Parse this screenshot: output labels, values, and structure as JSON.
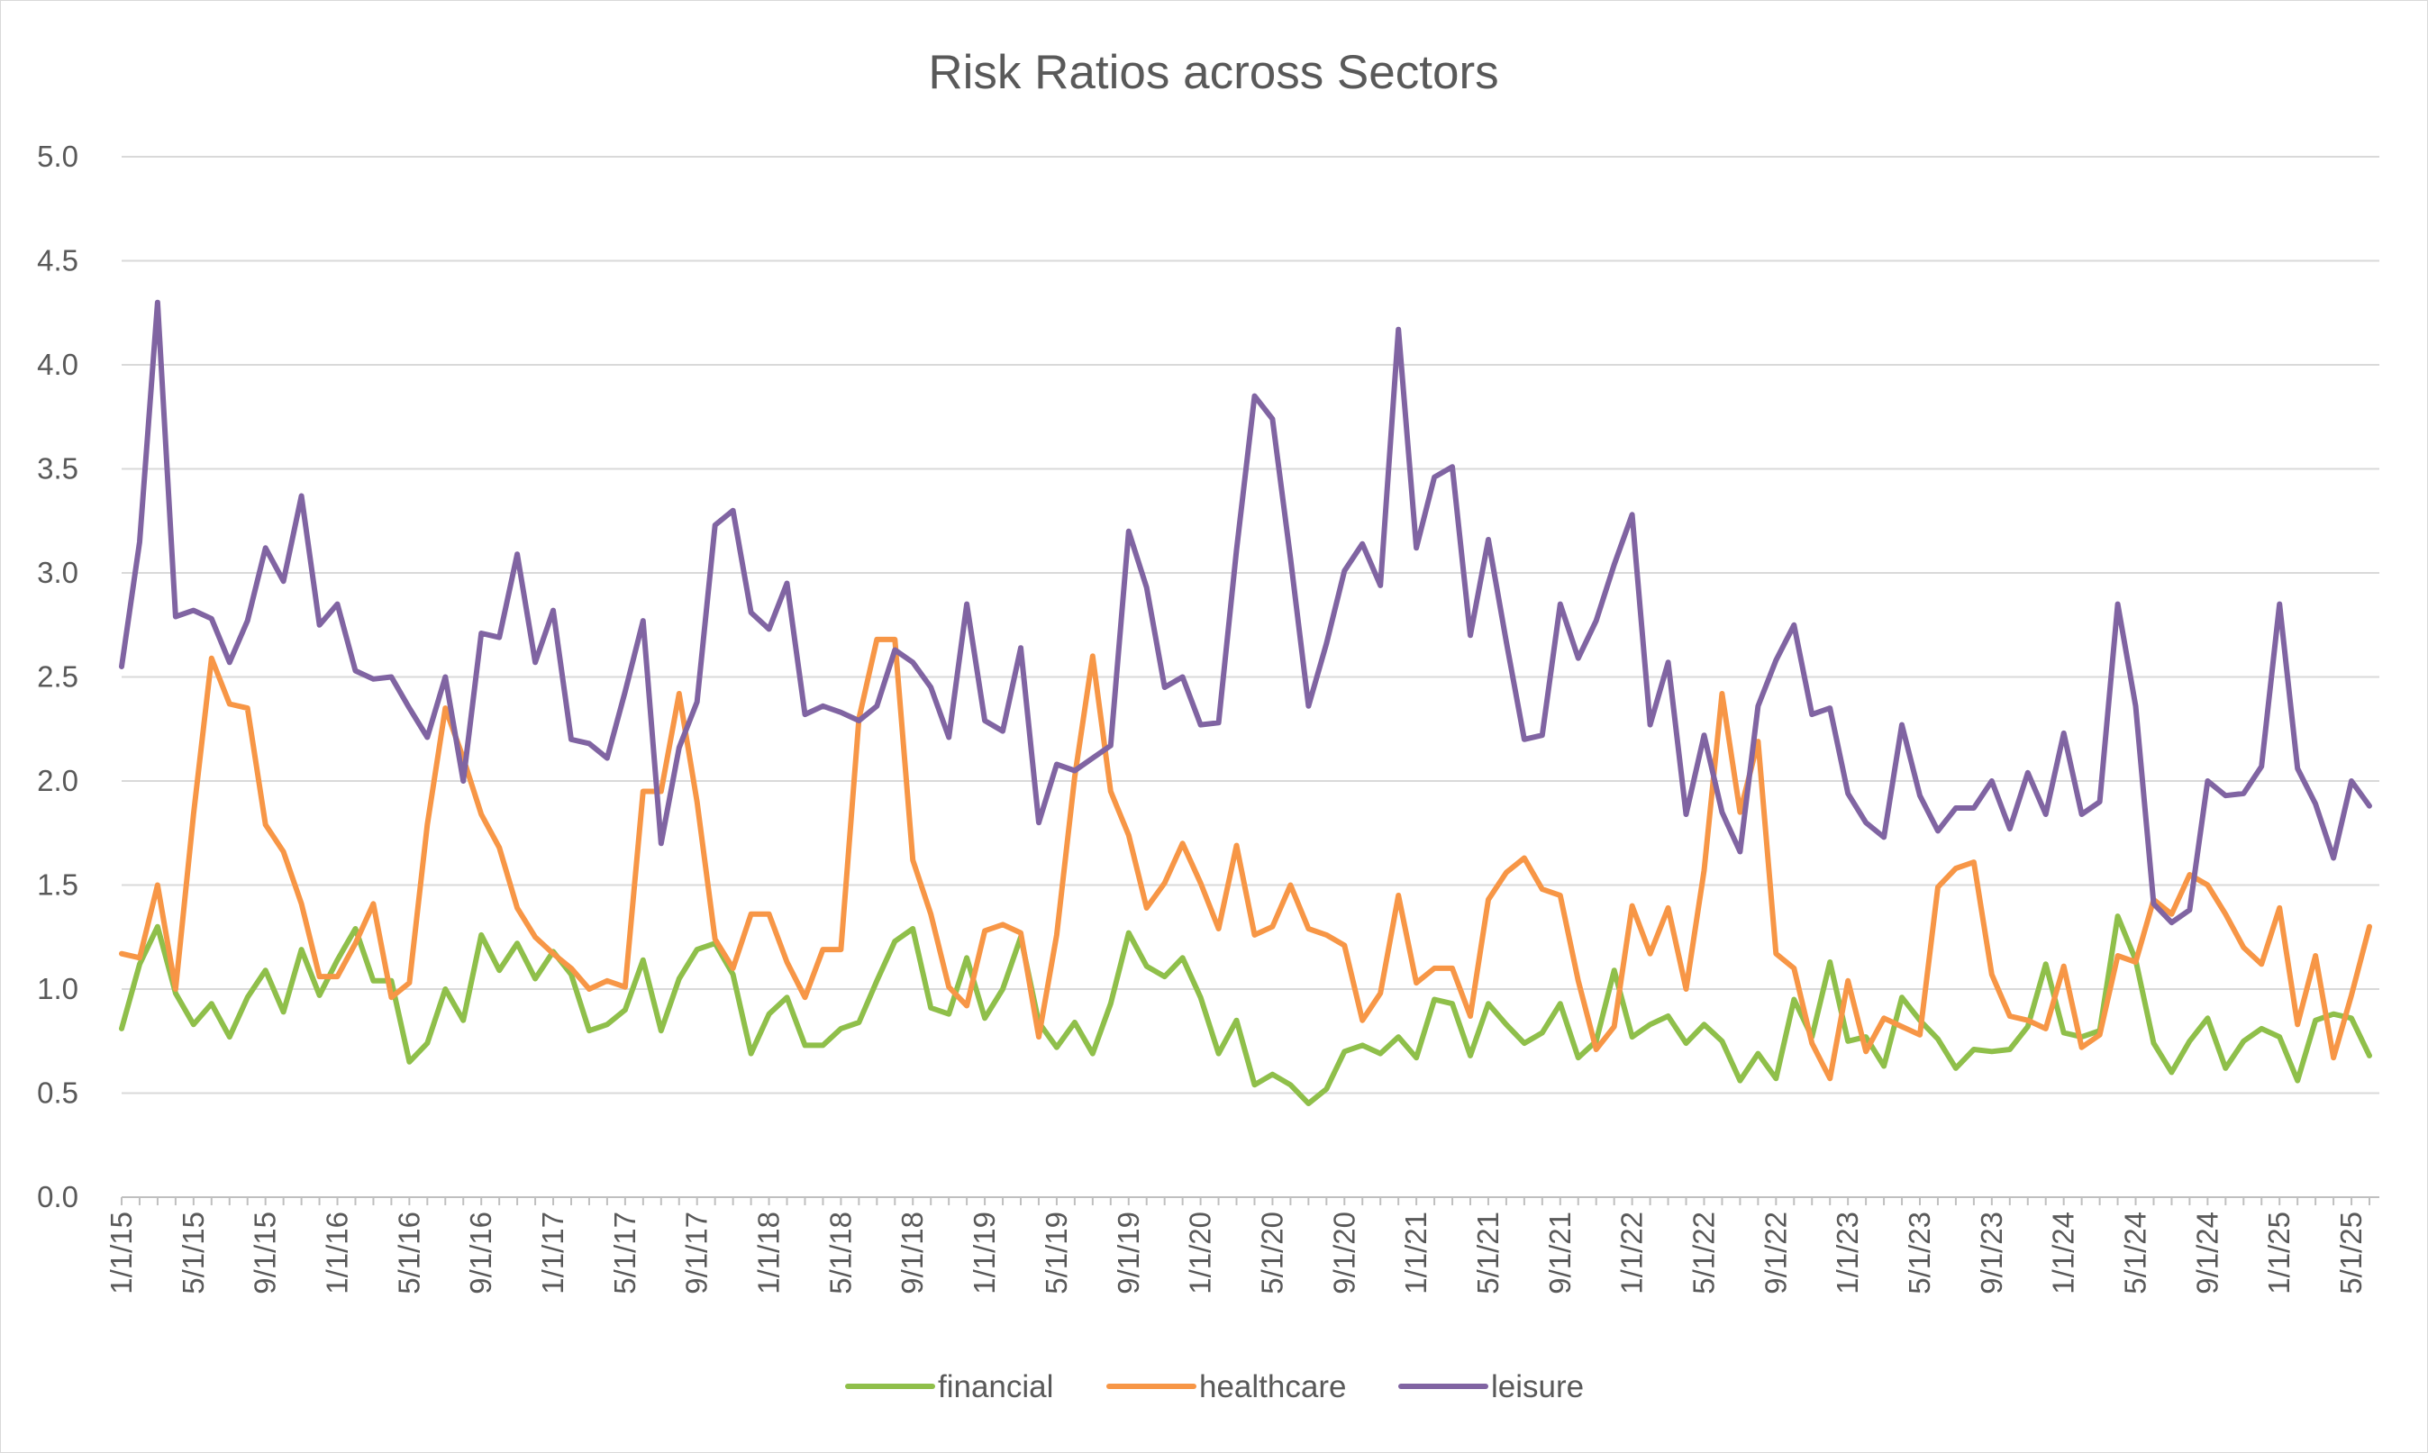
{
  "chart_data": {
    "type": "line",
    "title": "Risk Ratios across Sectors",
    "xlabel": "",
    "ylabel": "",
    "ylim": [
      0,
      5
    ],
    "yticks": [
      "0.0",
      "0.5",
      "1.0",
      "1.5",
      "2.0",
      "2.5",
      "3.0",
      "3.5",
      "4.0",
      "4.5",
      "5.0"
    ],
    "x_start": "1/1/15",
    "x_tick_labels": [
      "1/1/15",
      "5/1/15",
      "9/1/15",
      "1/1/16",
      "5/1/16",
      "9/1/16",
      "1/1/17",
      "5/1/17",
      "9/1/17",
      "1/1/18",
      "5/1/18",
      "9/1/18",
      "1/1/19",
      "5/1/19",
      "9/1/19",
      "1/1/20",
      "5/1/20",
      "9/1/20",
      "1/1/21",
      "5/1/21",
      "9/1/21",
      "1/1/22",
      "5/1/22",
      "9/1/22",
      "1/1/23",
      "5/1/23",
      "9/1/23",
      "1/1/24",
      "5/1/24",
      "9/1/24",
      "1/1/25",
      "5/1/25"
    ],
    "grid": true,
    "legend_position": "bottom",
    "series": [
      {
        "name": "financial",
        "color": "#8fbf4a",
        "values": [
          0.81,
          1.12,
          1.3,
          0.98,
          0.83,
          0.93,
          0.77,
          0.96,
          1.09,
          0.89,
          1.19,
          0.97,
          1.14,
          1.29,
          1.04,
          1.04,
          0.65,
          0.74,
          1.0,
          0.85,
          1.26,
          1.09,
          1.22,
          1.05,
          1.18,
          1.07,
          0.8,
          0.83,
          0.9,
          1.14,
          0.8,
          1.05,
          1.19,
          1.22,
          1.07,
          0.69,
          0.88,
          0.96,
          0.73,
          0.73,
          0.81,
          0.84,
          1.04,
          1.23,
          1.29,
          0.91,
          0.88,
          1.15,
          0.86,
          1.0,
          1.25,
          0.84,
          0.72,
          0.84,
          0.69,
          0.93,
          1.27,
          1.11,
          1.06,
          1.15,
          0.96,
          0.69,
          0.85,
          0.54,
          0.59,
          0.54,
          0.45,
          0.52,
          0.7,
          0.73,
          0.69,
          0.77,
          0.67,
          0.95,
          0.93,
          0.68,
          0.93,
          0.83,
          0.74,
          0.79,
          0.93,
          0.67,
          0.75,
          1.09,
          0.77,
          0.83,
          0.87,
          0.74,
          0.83,
          0.75,
          0.56,
          0.69,
          0.57,
          0.95,
          0.77,
          1.13,
          0.75,
          0.77,
          0.63,
          0.96,
          0.85,
          0.76,
          0.62,
          0.71,
          0.7,
          0.71,
          0.82,
          1.12,
          0.79,
          0.77,
          0.8,
          1.35,
          1.14,
          0.74,
          0.6,
          0.75,
          0.86,
          0.62,
          0.75,
          0.81,
          0.77,
          0.56,
          0.85,
          0.88,
          0.86,
          0.68
        ]
      },
      {
        "name": "healthcare",
        "color": "#f79646",
        "values": [
          1.17,
          1.15,
          1.5,
          1.0,
          1.84,
          2.59,
          2.37,
          2.35,
          1.79,
          1.66,
          1.41,
          1.06,
          1.06,
          1.22,
          1.41,
          0.96,
          1.03,
          1.79,
          2.35,
          2.11,
          1.84,
          1.68,
          1.39,
          1.25,
          1.17,
          1.1,
          1.0,
          1.04,
          1.01,
          1.95,
          1.95,
          2.42,
          1.9,
          1.24,
          1.1,
          1.36,
          1.36,
          1.13,
          0.96,
          1.19,
          1.19,
          2.3,
          2.68,
          2.68,
          1.62,
          1.36,
          1.01,
          0.92,
          1.28,
          1.31,
          1.27,
          0.77,
          1.26,
          2.02,
          2.6,
          1.95,
          1.74,
          1.39,
          1.51,
          1.7,
          1.51,
          1.29,
          1.69,
          1.26,
          1.3,
          1.5,
          1.29,
          1.26,
          1.21,
          0.85,
          0.98,
          1.45,
          1.03,
          1.1,
          1.1,
          0.87,
          1.43,
          1.56,
          1.63,
          1.48,
          1.45,
          1.04,
          0.71,
          0.82,
          1.4,
          1.17,
          1.39,
          1.0,
          1.57,
          2.42,
          1.85,
          2.19,
          1.17,
          1.1,
          0.74,
          0.57,
          1.04,
          0.7,
          0.86,
          0.82,
          0.78,
          1.49,
          1.58,
          1.61,
          1.07,
          0.87,
          0.85,
          0.81,
          1.11,
          0.72,
          0.78,
          1.16,
          1.13,
          1.43,
          1.36,
          1.55,
          1.5,
          1.36,
          1.2,
          1.12,
          1.39,
          0.83,
          1.16,
          0.67,
          0.97,
          1.3
        ]
      },
      {
        "name": "leisure",
        "color": "#8064a2",
        "values": [
          2.55,
          3.15,
          4.3,
          2.79,
          2.82,
          2.78,
          2.57,
          2.77,
          3.12,
          2.96,
          3.37,
          2.75,
          2.85,
          2.53,
          2.49,
          2.5,
          2.35,
          2.21,
          2.5,
          2.0,
          2.71,
          2.69,
          3.09,
          2.57,
          2.82,
          2.2,
          2.18,
          2.11,
          2.43,
          2.77,
          1.7,
          2.16,
          2.38,
          3.23,
          3.3,
          2.81,
          2.73,
          2.95,
          2.32,
          2.36,
          2.33,
          2.29,
          2.36,
          2.63,
          2.57,
          2.45,
          2.21,
          2.85,
          2.29,
          2.24,
          2.64,
          1.8,
          2.08,
          2.05,
          2.11,
          2.17,
          3.2,
          2.93,
          2.45,
          2.5,
          2.27,
          2.28,
          3.11,
          3.85,
          3.74,
          3.07,
          2.36,
          2.66,
          3.01,
          3.14,
          2.94,
          4.17,
          3.12,
          3.46,
          3.51,
          2.7,
          3.16,
          2.67,
          2.2,
          2.22,
          2.85,
          2.59,
          2.77,
          3.04,
          3.28,
          2.27,
          2.57,
          1.84,
          2.22,
          1.85,
          1.66,
          2.36,
          2.58,
          2.75,
          2.32,
          2.35,
          1.94,
          1.8,
          1.73,
          2.27,
          1.93,
          1.76,
          1.87,
          1.87,
          2.0,
          1.77,
          2.04,
          1.84,
          2.23,
          1.84,
          1.9,
          2.85,
          2.36,
          1.41,
          1.32,
          1.38,
          2.0,
          1.93,
          1.94,
          2.07,
          2.85,
          2.06,
          1.89,
          1.63,
          2.0,
          1.88
        ]
      }
    ]
  }
}
